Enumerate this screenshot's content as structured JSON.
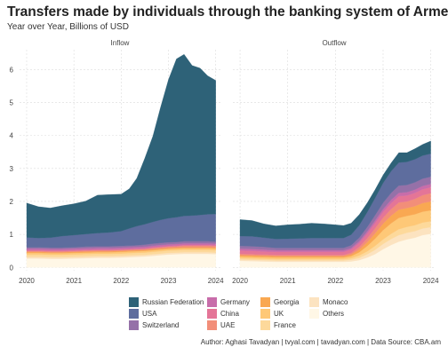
{
  "chart_data": {
    "type": "area",
    "stacked": true,
    "title": "Transfers made by individuals through the banking system of Armenia",
    "subtitle": "Year over Year, Billions of USD",
    "facets": [
      "Inflow",
      "Outflow"
    ],
    "x_ticks": [
      "2020",
      "2021",
      "2022",
      "2023",
      "2024"
    ],
    "y_ticks": [
      0,
      1,
      2,
      3,
      4,
      5,
      6
    ],
    "ylim": [
      -0.1,
      6.6
    ],
    "xlim": [
      2019.85,
      2024.1
    ],
    "grid": true,
    "legend_position": "bottom",
    "caption": "Author: Aghasi Tavadyan   |   tvyal.com   |   tavadyan.com   |   Data Source: CBA.am",
    "series": [
      {
        "name": "Others",
        "color": "#FFF7E6"
      },
      {
        "name": "Monaco",
        "color": "#FCE3C0"
      },
      {
        "name": "France",
        "color": "#FDD99B"
      },
      {
        "name": "UK",
        "color": "#FEC877"
      },
      {
        "name": "Georgia",
        "color": "#F9A852"
      },
      {
        "name": "UAE",
        "color": "#F28E79"
      },
      {
        "name": "China",
        "color": "#E47597"
      },
      {
        "name": "Germany",
        "color": "#C86DAA"
      },
      {
        "name": "Switzerland",
        "color": "#9571A8"
      },
      {
        "name": "USA",
        "color": "#5E6D9E"
      },
      {
        "name": "Russian Federation",
        "color": "#2E6278"
      }
    ],
    "x": [
      2020.0,
      2020.25,
      2020.5,
      2020.75,
      2021.0,
      2021.25,
      2021.5,
      2021.75,
      2022.0,
      2022.17,
      2022.33,
      2022.5,
      2022.67,
      2022.83,
      2023.0,
      2023.17,
      2023.33,
      2023.5,
      2023.67,
      2023.83,
      2024.0
    ],
    "panels": [
      {
        "name": "Inflow",
        "values": {
          "Others": [
            0.27,
            0.27,
            0.26,
            0.26,
            0.27,
            0.28,
            0.29,
            0.29,
            0.3,
            0.31,
            0.32,
            0.33,
            0.35,
            0.37,
            0.39,
            0.4,
            0.41,
            0.41,
            0.41,
            0.41,
            0.4
          ],
          "Monaco": [
            0.05,
            0.05,
            0.05,
            0.05,
            0.05,
            0.05,
            0.05,
            0.05,
            0.05,
            0.05,
            0.05,
            0.05,
            0.05,
            0.05,
            0.05,
            0.05,
            0.05,
            0.05,
            0.05,
            0.05,
            0.05
          ],
          "France": [
            0.07,
            0.07,
            0.07,
            0.07,
            0.07,
            0.07,
            0.07,
            0.07,
            0.07,
            0.07,
            0.07,
            0.07,
            0.07,
            0.07,
            0.07,
            0.07,
            0.07,
            0.07,
            0.07,
            0.07,
            0.07
          ],
          "UK": [
            0.05,
            0.05,
            0.05,
            0.05,
            0.05,
            0.05,
            0.05,
            0.05,
            0.05,
            0.05,
            0.05,
            0.05,
            0.05,
            0.05,
            0.05,
            0.05,
            0.05,
            0.05,
            0.05,
            0.05,
            0.05
          ],
          "Georgia": [
            0.03,
            0.03,
            0.03,
            0.03,
            0.03,
            0.03,
            0.03,
            0.03,
            0.03,
            0.03,
            0.03,
            0.03,
            0.03,
            0.03,
            0.03,
            0.03,
            0.03,
            0.03,
            0.03,
            0.03,
            0.03
          ],
          "UAE": [
            0.03,
            0.03,
            0.03,
            0.03,
            0.03,
            0.03,
            0.03,
            0.03,
            0.03,
            0.03,
            0.03,
            0.03,
            0.04,
            0.04,
            0.04,
            0.04,
            0.05,
            0.05,
            0.05,
            0.05,
            0.05
          ],
          "China": [
            0.02,
            0.02,
            0.02,
            0.02,
            0.02,
            0.02,
            0.02,
            0.02,
            0.02,
            0.02,
            0.02,
            0.02,
            0.02,
            0.02,
            0.02,
            0.02,
            0.02,
            0.02,
            0.02,
            0.02,
            0.02
          ],
          "Germany": [
            0.05,
            0.05,
            0.05,
            0.05,
            0.05,
            0.05,
            0.05,
            0.05,
            0.05,
            0.05,
            0.05,
            0.05,
            0.05,
            0.05,
            0.05,
            0.05,
            0.05,
            0.05,
            0.05,
            0.05,
            0.05
          ],
          "Switzerland": [
            0.04,
            0.04,
            0.04,
            0.04,
            0.04,
            0.05,
            0.05,
            0.05,
            0.05,
            0.05,
            0.05,
            0.06,
            0.06,
            0.06,
            0.06,
            0.06,
            0.06,
            0.06,
            0.06,
            0.06,
            0.06
          ],
          "USA": [
            0.3,
            0.28,
            0.3,
            0.35,
            0.37,
            0.38,
            0.4,
            0.42,
            0.45,
            0.52,
            0.58,
            0.62,
            0.66,
            0.7,
            0.73,
            0.75,
            0.77,
            0.78,
            0.8,
            0.82,
            0.84
          ],
          "Russian Federation": [
            1.04,
            0.95,
            0.9,
            0.92,
            0.95,
            1.0,
            1.15,
            1.15,
            1.12,
            1.2,
            1.45,
            2.0,
            2.6,
            3.4,
            4.2,
            4.8,
            4.9,
            4.55,
            4.45,
            4.2,
            4.05
          ]
        }
      },
      {
        "name": "Outflow",
        "values": {
          "Others": [
            0.2,
            0.19,
            0.18,
            0.17,
            0.17,
            0.17,
            0.17,
            0.17,
            0.17,
            0.17,
            0.18,
            0.22,
            0.3,
            0.4,
            0.55,
            0.68,
            0.78,
            0.85,
            0.9,
            0.98,
            1.02
          ],
          "Monaco": [
            0.04,
            0.04,
            0.04,
            0.04,
            0.04,
            0.04,
            0.04,
            0.04,
            0.04,
            0.04,
            0.05,
            0.07,
            0.1,
            0.13,
            0.16,
            0.18,
            0.2,
            0.2,
            0.2,
            0.2,
            0.2
          ],
          "France": [
            0.04,
            0.04,
            0.04,
            0.04,
            0.04,
            0.04,
            0.04,
            0.04,
            0.04,
            0.04,
            0.05,
            0.07,
            0.09,
            0.12,
            0.14,
            0.16,
            0.18,
            0.18,
            0.18,
            0.18,
            0.18
          ],
          "UK": [
            0.05,
            0.05,
            0.05,
            0.05,
            0.05,
            0.05,
            0.05,
            0.05,
            0.05,
            0.05,
            0.06,
            0.1,
            0.16,
            0.22,
            0.28,
            0.32,
            0.34,
            0.33,
            0.33,
            0.33,
            0.33
          ],
          "Georgia": [
            0.04,
            0.04,
            0.04,
            0.04,
            0.04,
            0.04,
            0.04,
            0.04,
            0.04,
            0.04,
            0.05,
            0.08,
            0.12,
            0.16,
            0.2,
            0.23,
            0.25,
            0.24,
            0.25,
            0.26,
            0.27
          ],
          "UAE": [
            0.04,
            0.04,
            0.04,
            0.04,
            0.04,
            0.04,
            0.04,
            0.04,
            0.04,
            0.04,
            0.05,
            0.08,
            0.12,
            0.15,
            0.18,
            0.2,
            0.22,
            0.2,
            0.22,
            0.24,
            0.25
          ],
          "China": [
            0.1,
            0.1,
            0.09,
            0.09,
            0.09,
            0.09,
            0.09,
            0.09,
            0.09,
            0.09,
            0.1,
            0.12,
            0.14,
            0.16,
            0.17,
            0.18,
            0.19,
            0.18,
            0.18,
            0.18,
            0.18
          ],
          "Germany": [
            0.06,
            0.06,
            0.06,
            0.05,
            0.05,
            0.05,
            0.05,
            0.05,
            0.05,
            0.05,
            0.05,
            0.06,
            0.07,
            0.08,
            0.09,
            0.1,
            0.1,
            0.1,
            0.1,
            0.1,
            0.1
          ],
          "Switzerland": [
            0.08,
            0.08,
            0.08,
            0.07,
            0.07,
            0.07,
            0.07,
            0.07,
            0.07,
            0.07,
            0.08,
            0.1,
            0.13,
            0.16,
            0.19,
            0.21,
            0.22,
            0.22,
            0.22,
            0.22,
            0.22
          ],
          "USA": [
            0.3,
            0.3,
            0.28,
            0.27,
            0.28,
            0.29,
            0.3,
            0.3,
            0.3,
            0.3,
            0.32,
            0.38,
            0.45,
            0.52,
            0.6,
            0.66,
            0.7,
            0.7,
            0.7,
            0.7,
            0.7
          ],
          "Russian Federation": [
            0.5,
            0.48,
            0.42,
            0.4,
            0.42,
            0.43,
            0.45,
            0.43,
            0.4,
            0.38,
            0.35,
            0.32,
            0.28,
            0.25,
            0.24,
            0.25,
            0.3,
            0.28,
            0.32,
            0.34,
            0.38
          ]
        }
      }
    ]
  },
  "legend": {
    "columns": [
      [
        "Russian Federation",
        "USA",
        "Switzerland"
      ],
      [
        "Germany",
        "China",
        "UAE"
      ],
      [
        "Georgia",
        "UK",
        "France"
      ],
      [
        "Monaco",
        "Others"
      ]
    ]
  }
}
